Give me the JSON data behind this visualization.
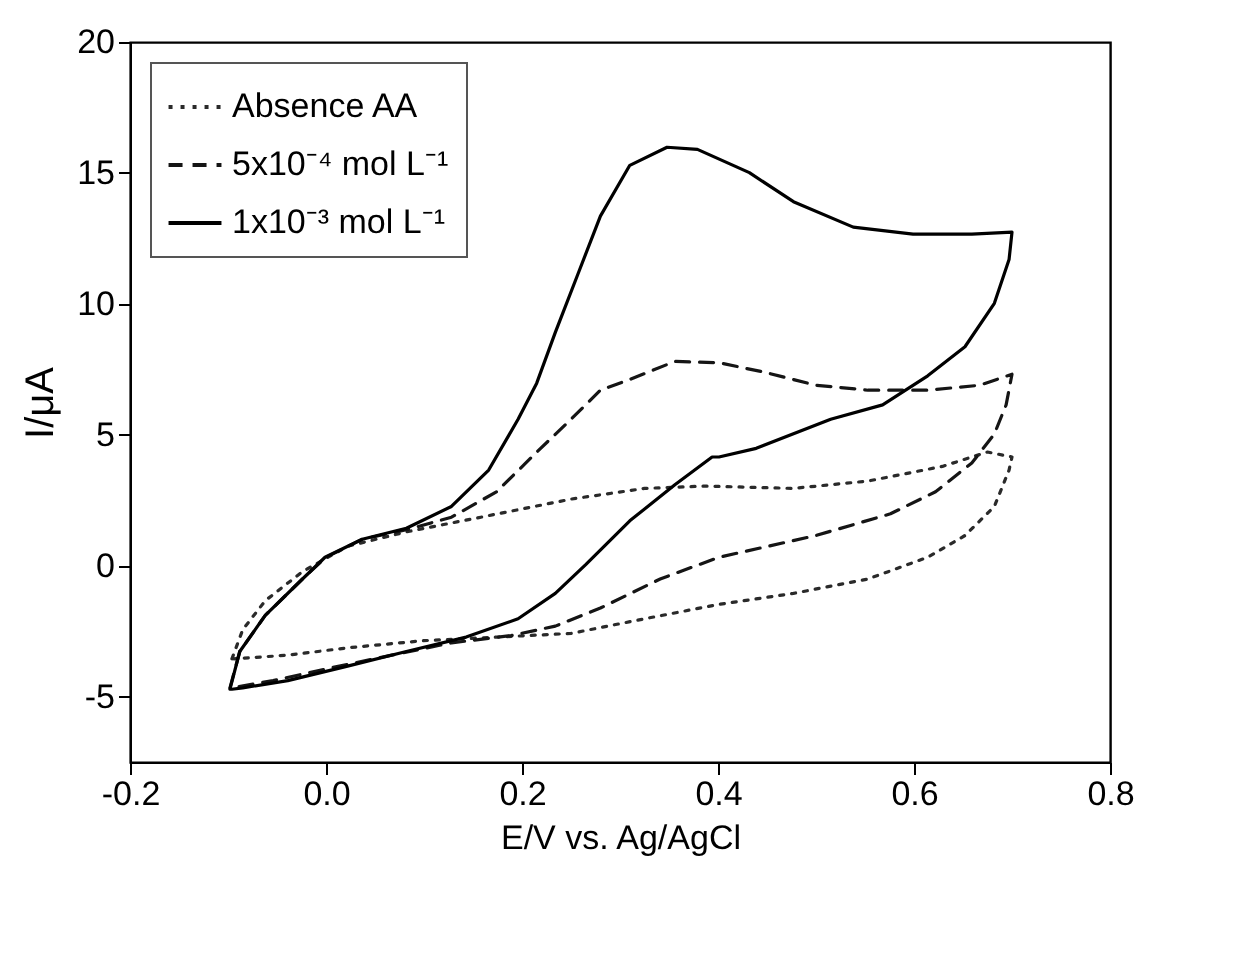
{
  "chart_data": {
    "type": "line",
    "xlabel": "E/V vs. Ag/AgCl",
    "ylabel": "I/μA",
    "legend": "top left",
    "grid": false,
    "xlim": [
      -0.2,
      0.8
    ],
    "xticks": [
      -0.2,
      {
        "value": 0,
        "label": "0.0"
      },
      0.2,
      0.4,
      0.6,
      0.8
    ],
    "ylim": [
      -7.5,
      20
    ],
    "yticks": [
      -5,
      0,
      5,
      10,
      15,
      20
    ],
    "series": [
      {
        "name": "Absence AA",
        "color": "#2a2a2a",
        "line_style": "dotted",
        "x": [
          -0.096,
          -0.085,
          -0.062,
          -0.024,
          0.022,
          0.082,
          0.158,
          0.25,
          0.325,
          0.386,
          0.477,
          0.553,
          0.629,
          0.675,
          0.7,
          0.697,
          0.682,
          0.652,
          0.614,
          0.553,
          0.477,
          0.401,
          0.325,
          0.25,
          0.174,
          0.098,
          0.022,
          -0.039,
          -0.094
        ],
        "values": [
          -3.56,
          -2.45,
          -1.34,
          -0.23,
          0.74,
          1.29,
          1.85,
          2.54,
          2.95,
          3.04,
          2.95,
          3.23,
          3.79,
          4.34,
          4.15,
          3.65,
          2.26,
          1.15,
          0.32,
          -0.51,
          -1.06,
          -1.48,
          -2.03,
          -2.59,
          -2.73,
          -2.87,
          -3.14,
          -3.42,
          -3.56
        ]
      },
      {
        "name": "5x10⁻⁴ mol L⁻¹",
        "color": "#151515",
        "line_style": "dashed",
        "x": [
          -0.098,
          -0.088,
          -0.062,
          -0.024,
          0.0,
          0.037,
          0.082,
          0.128,
          0.174,
          0.219,
          0.25,
          0.28,
          0.31,
          0.356,
          0.401,
          0.447,
          0.5,
          0.553,
          0.614,
          0.667,
          0.7,
          0.694,
          0.682,
          0.659,
          0.622,
          0.576,
          0.5,
          0.401,
          0.341,
          0.28,
          0.234,
          0.189,
          0.128,
          0.067,
          0.007,
          -0.054,
          -0.096
        ],
        "values": [
          -4.67,
          -3.28,
          -1.9,
          -0.51,
          0.32,
          1.01,
          1.37,
          1.85,
          2.82,
          4.48,
          5.59,
          6.7,
          7.11,
          7.8,
          7.75,
          7.39,
          6.89,
          6.7,
          6.7,
          6.89,
          7.31,
          6.14,
          5.03,
          3.92,
          2.82,
          1.98,
          1.15,
          0.32,
          -0.51,
          -1.62,
          -2.31,
          -2.67,
          -2.95,
          -3.42,
          -3.89,
          -4.39,
          -4.67
        ]
      },
      {
        "name": "1x10⁻³ mol L⁻¹",
        "color": "#000000",
        "line_style": "solid",
        "x": [
          -0.098,
          -0.088,
          -0.062,
          -0.024,
          -0.001,
          0.037,
          0.082,
          0.128,
          0.166,
          0.196,
          0.215,
          0.234,
          0.257,
          0.28,
          0.31,
          0.348,
          0.379,
          0.432,
          0.477,
          0.538,
          0.599,
          0.659,
          0.7,
          0.697,
          0.682,
          0.652,
          0.614,
          0.568,
          0.515,
          0.439,
          0.401,
          0.394,
          0.356,
          0.31,
          0.265,
          0.234,
          0.196,
          0.143,
          0.082,
          0.022,
          -0.039,
          -0.085,
          -0.096
        ],
        "values": [
          -4.72,
          -3.28,
          -1.9,
          -0.51,
          0.32,
          1.01,
          1.43,
          2.26,
          3.65,
          5.59,
          6.97,
          8.91,
          11.13,
          13.35,
          15.29,
          15.98,
          15.9,
          15.01,
          13.9,
          12.93,
          12.66,
          12.66,
          12.74,
          11.69,
          10.02,
          8.36,
          7.25,
          6.14,
          5.59,
          4.48,
          4.15,
          4.15,
          3.09,
          1.71,
          0.04,
          -1.06,
          -2.03,
          -2.73,
          -3.28,
          -3.84,
          -4.39,
          -4.67,
          -4.72
        ]
      }
    ]
  }
}
